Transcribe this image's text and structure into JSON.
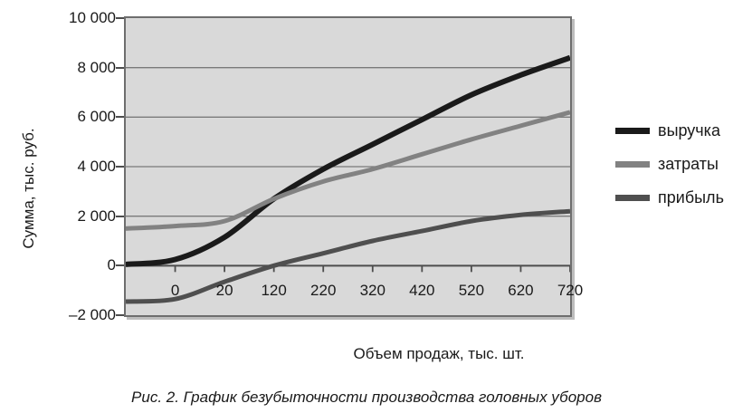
{
  "chart_data": {
    "type": "line",
    "smoothed": true,
    "categories": [
      "",
      "0",
      "20",
      "120",
      "220",
      "320",
      "420",
      "520",
      "620",
      "720"
    ],
    "series": [
      {
        "name": "выручка",
        "color": "#1a1a1a",
        "values": [
          50,
          250,
          1150,
          2700,
          3900,
          4900,
          5900,
          6900,
          7700,
          8400
        ]
      },
      {
        "name": "затраты",
        "color": "#828282",
        "values": [
          1500,
          1600,
          1800,
          2700,
          3400,
          3900,
          4500,
          5100,
          5650,
          6200
        ]
      },
      {
        "name": "прибыль",
        "color": "#4f4f4f",
        "values": [
          -1450,
          -1350,
          -650,
          0,
          500,
          1000,
          1400,
          1800,
          2050,
          2200
        ]
      }
    ],
    "xlabel": "Объем продаж, тыс. шт.",
    "ylabel": "Сумма, тыс. руб.",
    "ylim": [
      -2000,
      10000
    ],
    "ytick_step": 2000,
    "ytick_labels": [
      "10 000",
      "8 000",
      "6 000",
      "4 000",
      "2 000",
      "0",
      "–2 000"
    ],
    "legend": [
      "выручка",
      "затраты",
      "прибыль"
    ],
    "legend_position": "right",
    "grid": "horizontal",
    "plot_background": "#d9d9d9",
    "gridline_color": "#7a7a7a",
    "zero_axis_color": "#4d4d4d",
    "caption": "Рис. 2. График безубыточности производства головных уборов"
  }
}
